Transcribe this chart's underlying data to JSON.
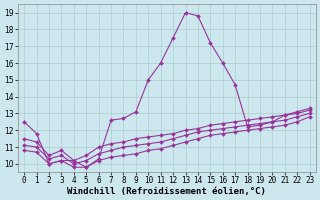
{
  "title": "",
  "xlabel": "Windchill (Refroidissement éolien,°C)",
  "ylabel": "",
  "bg_color": "#cce8ee",
  "line_color": "#993399",
  "grid_color": "#aacccc",
  "xlim": [
    -0.5,
    23.5
  ],
  "ylim": [
    9.5,
    19.5
  ],
  "xticks": [
    0,
    1,
    2,
    3,
    4,
    5,
    6,
    7,
    8,
    9,
    10,
    11,
    12,
    13,
    14,
    15,
    16,
    17,
    18,
    19,
    20,
    21,
    22,
    23
  ],
  "yticks": [
    10,
    11,
    12,
    13,
    14,
    15,
    16,
    17,
    18,
    19
  ],
  "line1_x": [
    0,
    1,
    2,
    3,
    4,
    5,
    6,
    7,
    8,
    9,
    10,
    11,
    12,
    13,
    14,
    15,
    16,
    17,
    18,
    19,
    20,
    21,
    22,
    23
  ],
  "line1_y": [
    12.5,
    11.8,
    10.0,
    10.2,
    10.2,
    9.8,
    10.3,
    12.6,
    12.7,
    13.1,
    15.0,
    16.0,
    17.5,
    19.0,
    18.8,
    17.2,
    16.0,
    14.7,
    12.2,
    12.3,
    12.5,
    12.9,
    13.1,
    13.3
  ],
  "line2_x": [
    0,
    1,
    2,
    3,
    4,
    5,
    6,
    7,
    8,
    9,
    10,
    11,
    12,
    13,
    14,
    15,
    16,
    17,
    18,
    19,
    20,
    21,
    22,
    23
  ],
  "line2_y": [
    11.5,
    11.3,
    10.5,
    10.8,
    10.2,
    10.5,
    11.0,
    11.2,
    11.3,
    11.5,
    11.6,
    11.7,
    11.8,
    12.0,
    12.1,
    12.3,
    12.4,
    12.5,
    12.6,
    12.7,
    12.8,
    12.9,
    13.0,
    13.2
  ],
  "line3_x": [
    0,
    1,
    2,
    3,
    4,
    5,
    6,
    7,
    8,
    9,
    10,
    11,
    12,
    13,
    14,
    15,
    16,
    17,
    18,
    19,
    20,
    21,
    22,
    23
  ],
  "line3_y": [
    11.1,
    11.0,
    10.3,
    10.5,
    10.0,
    10.2,
    10.6,
    10.8,
    11.0,
    11.1,
    11.2,
    11.3,
    11.5,
    11.7,
    11.9,
    12.0,
    12.1,
    12.2,
    12.3,
    12.4,
    12.5,
    12.6,
    12.8,
    13.0
  ],
  "line4_x": [
    0,
    1,
    2,
    3,
    4,
    5,
    6,
    7,
    8,
    9,
    10,
    11,
    12,
    13,
    14,
    15,
    16,
    17,
    18,
    19,
    20,
    21,
    22,
    23
  ],
  "line4_y": [
    10.8,
    10.7,
    10.0,
    10.2,
    9.8,
    9.8,
    10.2,
    10.4,
    10.5,
    10.6,
    10.8,
    10.9,
    11.1,
    11.3,
    11.5,
    11.7,
    11.8,
    11.9,
    12.0,
    12.1,
    12.2,
    12.3,
    12.5,
    12.8
  ],
  "marker": "D",
  "markersize": 2.0,
  "linewidth": 0.8,
  "xlabel_fontsize": 6.5,
  "tick_fontsize": 5.5
}
